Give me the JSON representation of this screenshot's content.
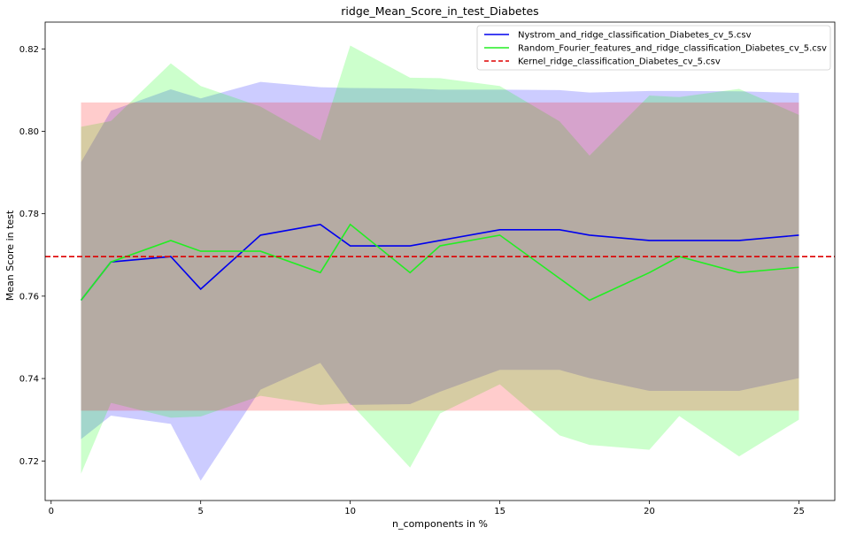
{
  "chart_data": {
    "type": "line",
    "title": "ridge_Mean_Score_in_test_Diabetes",
    "xlabel": "n_components in %",
    "ylabel": "Mean Score in test",
    "xlim": [
      -0.2,
      26.2
    ],
    "ylim": [
      0.7104,
      0.8265
    ],
    "xticks": [
      0,
      5,
      10,
      15,
      20,
      25
    ],
    "yticks": [
      0.72,
      0.74,
      0.76,
      0.78,
      0.8,
      0.82
    ],
    "x": [
      1,
      2,
      4,
      5,
      7,
      9,
      10,
      12,
      13,
      15,
      17,
      18,
      20,
      21,
      23,
      25
    ],
    "legend_position": "top-right",
    "grid": false,
    "series": [
      {
        "name": "Nystrom_and_ridge_classification_Diabetes_cv_5.csv",
        "color": "#0000ee",
        "style": "solid",
        "band_color": "#0000ff",
        "mean": [
          0.759,
          0.7683,
          0.7696,
          0.7617,
          0.7748,
          0.7774,
          0.7722,
          0.7722,
          0.7735,
          0.7761,
          0.7761,
          0.7748,
          0.7735,
          0.7735,
          0.7735,
          0.7748
        ],
        "upper": [
          0.7925,
          0.805,
          0.8102,
          0.808,
          0.812,
          0.8107,
          0.8105,
          0.8104,
          0.8101,
          0.8101,
          0.81,
          0.8094,
          0.8098,
          0.8098,
          0.8097,
          0.8093
        ],
        "lower": [
          0.7253,
          0.731,
          0.729,
          0.7152,
          0.7373,
          0.7438,
          0.7336,
          0.7338,
          0.7368,
          0.7421,
          0.7421,
          0.7401,
          0.737,
          0.737,
          0.737,
          0.7401
        ]
      },
      {
        "name": "Random_Fourier_features_and_ridge_classification_Diabetes_cv_5.csv",
        "color": "#22ee22",
        "style": "solid",
        "band_color": "#00ff00",
        "mean": [
          0.759,
          0.7683,
          0.7735,
          0.7709,
          0.7709,
          0.7657,
          0.7774,
          0.7657,
          0.7722,
          0.7748,
          0.7643,
          0.759,
          0.7657,
          0.7696,
          0.7657,
          0.767
        ],
        "upper": [
          0.8011,
          0.8025,
          0.8165,
          0.811,
          0.806,
          0.7978,
          0.8208,
          0.813,
          0.8129,
          0.811,
          0.8024,
          0.7941,
          0.8087,
          0.8083,
          0.8103,
          0.804
        ],
        "lower": [
          0.7169,
          0.7341,
          0.7305,
          0.7308,
          0.7358,
          0.7336,
          0.734,
          0.7184,
          0.7315,
          0.7386,
          0.7262,
          0.7239,
          0.7227,
          0.7309,
          0.7211,
          0.73
        ]
      },
      {
        "name": "Kernel_ridge_classification_Diabetes_cv_5.csv",
        "color": "#dd0000",
        "style": "dashed",
        "band_color": "#ff0000",
        "value": 0.7696,
        "upper": 0.807,
        "lower": 0.7322,
        "band_x": [
          1,
          25
        ]
      }
    ]
  }
}
